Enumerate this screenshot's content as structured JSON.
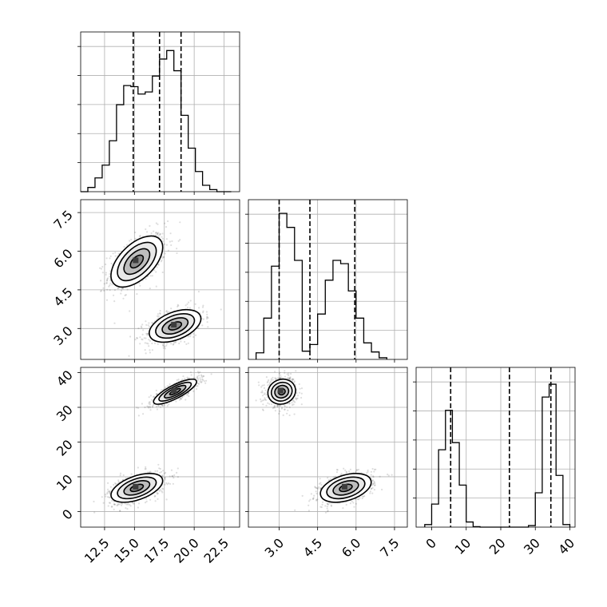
{
  "chart_data": {
    "type": "corner",
    "colors": {
      "points": "#000000",
      "contour_line": "#000000",
      "contour_fill": [
        "#ffffff",
        "#e8e8e8",
        "#bdbdbd",
        "#8a8a8a",
        "#3d3d3d"
      ],
      "grid": "#b0b0b0"
    },
    "grid": true,
    "params": [
      {
        "range": [
          10.5,
          23.8
        ],
        "ticks": [
          "12.5",
          "15.0",
          "17.5",
          "20.0",
          "22.5"
        ],
        "tick_values": [
          12.5,
          15.0,
          17.5,
          20.0,
          22.5
        ],
        "quantile_lines": [
          14.9,
          17.1,
          18.9
        ],
        "hist": {
          "edges_start": 10.5,
          "bin_width": 0.6,
          "counts": [
            0,
            4,
            13,
            25,
            48,
            82,
            100,
            99,
            92,
            94,
            109,
            125,
            133,
            114,
            72,
            41,
            19,
            6,
            2,
            0,
            0
          ]
        },
        "hist_ymax": 140
      },
      {
        "range": [
          1.8,
          8.0
        ],
        "ticks": [
          "3.0",
          "4.5",
          "6.0",
          "7.5"
        ],
        "tick_values": [
          3.0,
          4.5,
          6.0,
          7.5
        ],
        "quantile_lines": [
          3.0,
          4.2,
          5.95
        ],
        "hist": {
          "edges_start": 2.1,
          "bin_width": 0.3,
          "counts": [
            8,
            50,
            113,
            177,
            160,
            120,
            10,
            18,
            55,
            96,
            120,
            116,
            83,
            50,
            20,
            9,
            2
          ]
        },
        "hist_ymax": 180
      },
      {
        "range": [
          -4.5,
          41.5
        ],
        "ticks": [
          "0",
          "10",
          "20",
          "30",
          "40"
        ],
        "tick_values": [
          0,
          10,
          20,
          30,
          40
        ],
        "quantile_lines": [
          5.5,
          22.5,
          34.5
        ],
        "hist": {
          "edges_start": -2.0,
          "bin_width": 2.0,
          "counts": [
            5,
            45,
            151,
            228,
            165,
            82,
            10,
            1,
            0,
            0,
            0,
            0,
            0,
            0,
            0,
            3,
            67,
            254,
            279,
            101,
            5
          ]
        },
        "hist_ymax": 290
      }
    ],
    "panels_2d": [
      {
        "x_param": 0,
        "y_param": 1,
        "modes": [
          {
            "mean": [
              15.2,
              5.6
            ],
            "sd": [
              1.2,
              0.55
            ],
            "rho": 0.55,
            "weight": 0.5
          },
          {
            "mean": [
              18.4,
              3.1
            ],
            "sd": [
              1.2,
              0.35
            ],
            "rho": 0.45,
            "weight": 0.5
          }
        ]
      },
      {
        "x_param": 0,
        "y_param": 2,
        "modes": [
          {
            "mean": [
              15.2,
              6.8
            ],
            "sd": [
              1.2,
              2.3
            ],
            "rho": 0.5,
            "weight": 0.5
          },
          {
            "mean": [
              18.4,
              34.5
            ],
            "sd": [
              1.0,
              2.0
            ],
            "rho": 0.8,
            "weight": 0.5
          }
        ]
      },
      {
        "x_param": 1,
        "y_param": 2,
        "modes": [
          {
            "mean": [
              3.1,
              34.5
            ],
            "sd": [
              0.3,
              2.0
            ],
            "rho": 0.1,
            "weight": 0.5
          },
          {
            "mean": [
              5.6,
              6.8
            ],
            "sd": [
              0.55,
              2.3
            ],
            "rho": 0.4,
            "weight": 0.5
          }
        ]
      }
    ]
  }
}
